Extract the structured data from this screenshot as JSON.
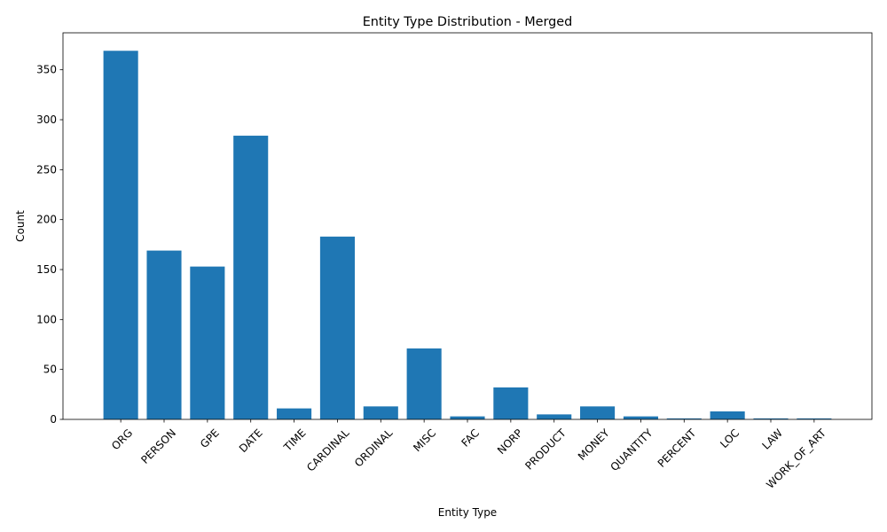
{
  "chart_data": {
    "type": "bar",
    "title": "Entity Type Distribution - Merged",
    "xlabel": "Entity Type",
    "ylabel": "Count",
    "categories": [
      "ORG",
      "PERSON",
      "GPE",
      "DATE",
      "TIME",
      "CARDINAL",
      "ORDINAL",
      "MISC",
      "FAC",
      "NORP",
      "PRODUCT",
      "MONEY",
      "QUANTITY",
      "PERCENT",
      "LOC",
      "LAW",
      "WORK_OF_ART"
    ],
    "values": [
      369,
      169,
      153,
      284,
      11,
      183,
      13,
      71,
      3,
      32,
      5,
      13,
      3,
      1,
      8,
      1,
      1
    ],
    "ylim": [
      0,
      387
    ],
    "yticks": [
      0,
      50,
      100,
      150,
      200,
      250,
      300,
      350
    ],
    "bar_color": "#1f77b4",
    "grid": false,
    "legend": "none"
  }
}
